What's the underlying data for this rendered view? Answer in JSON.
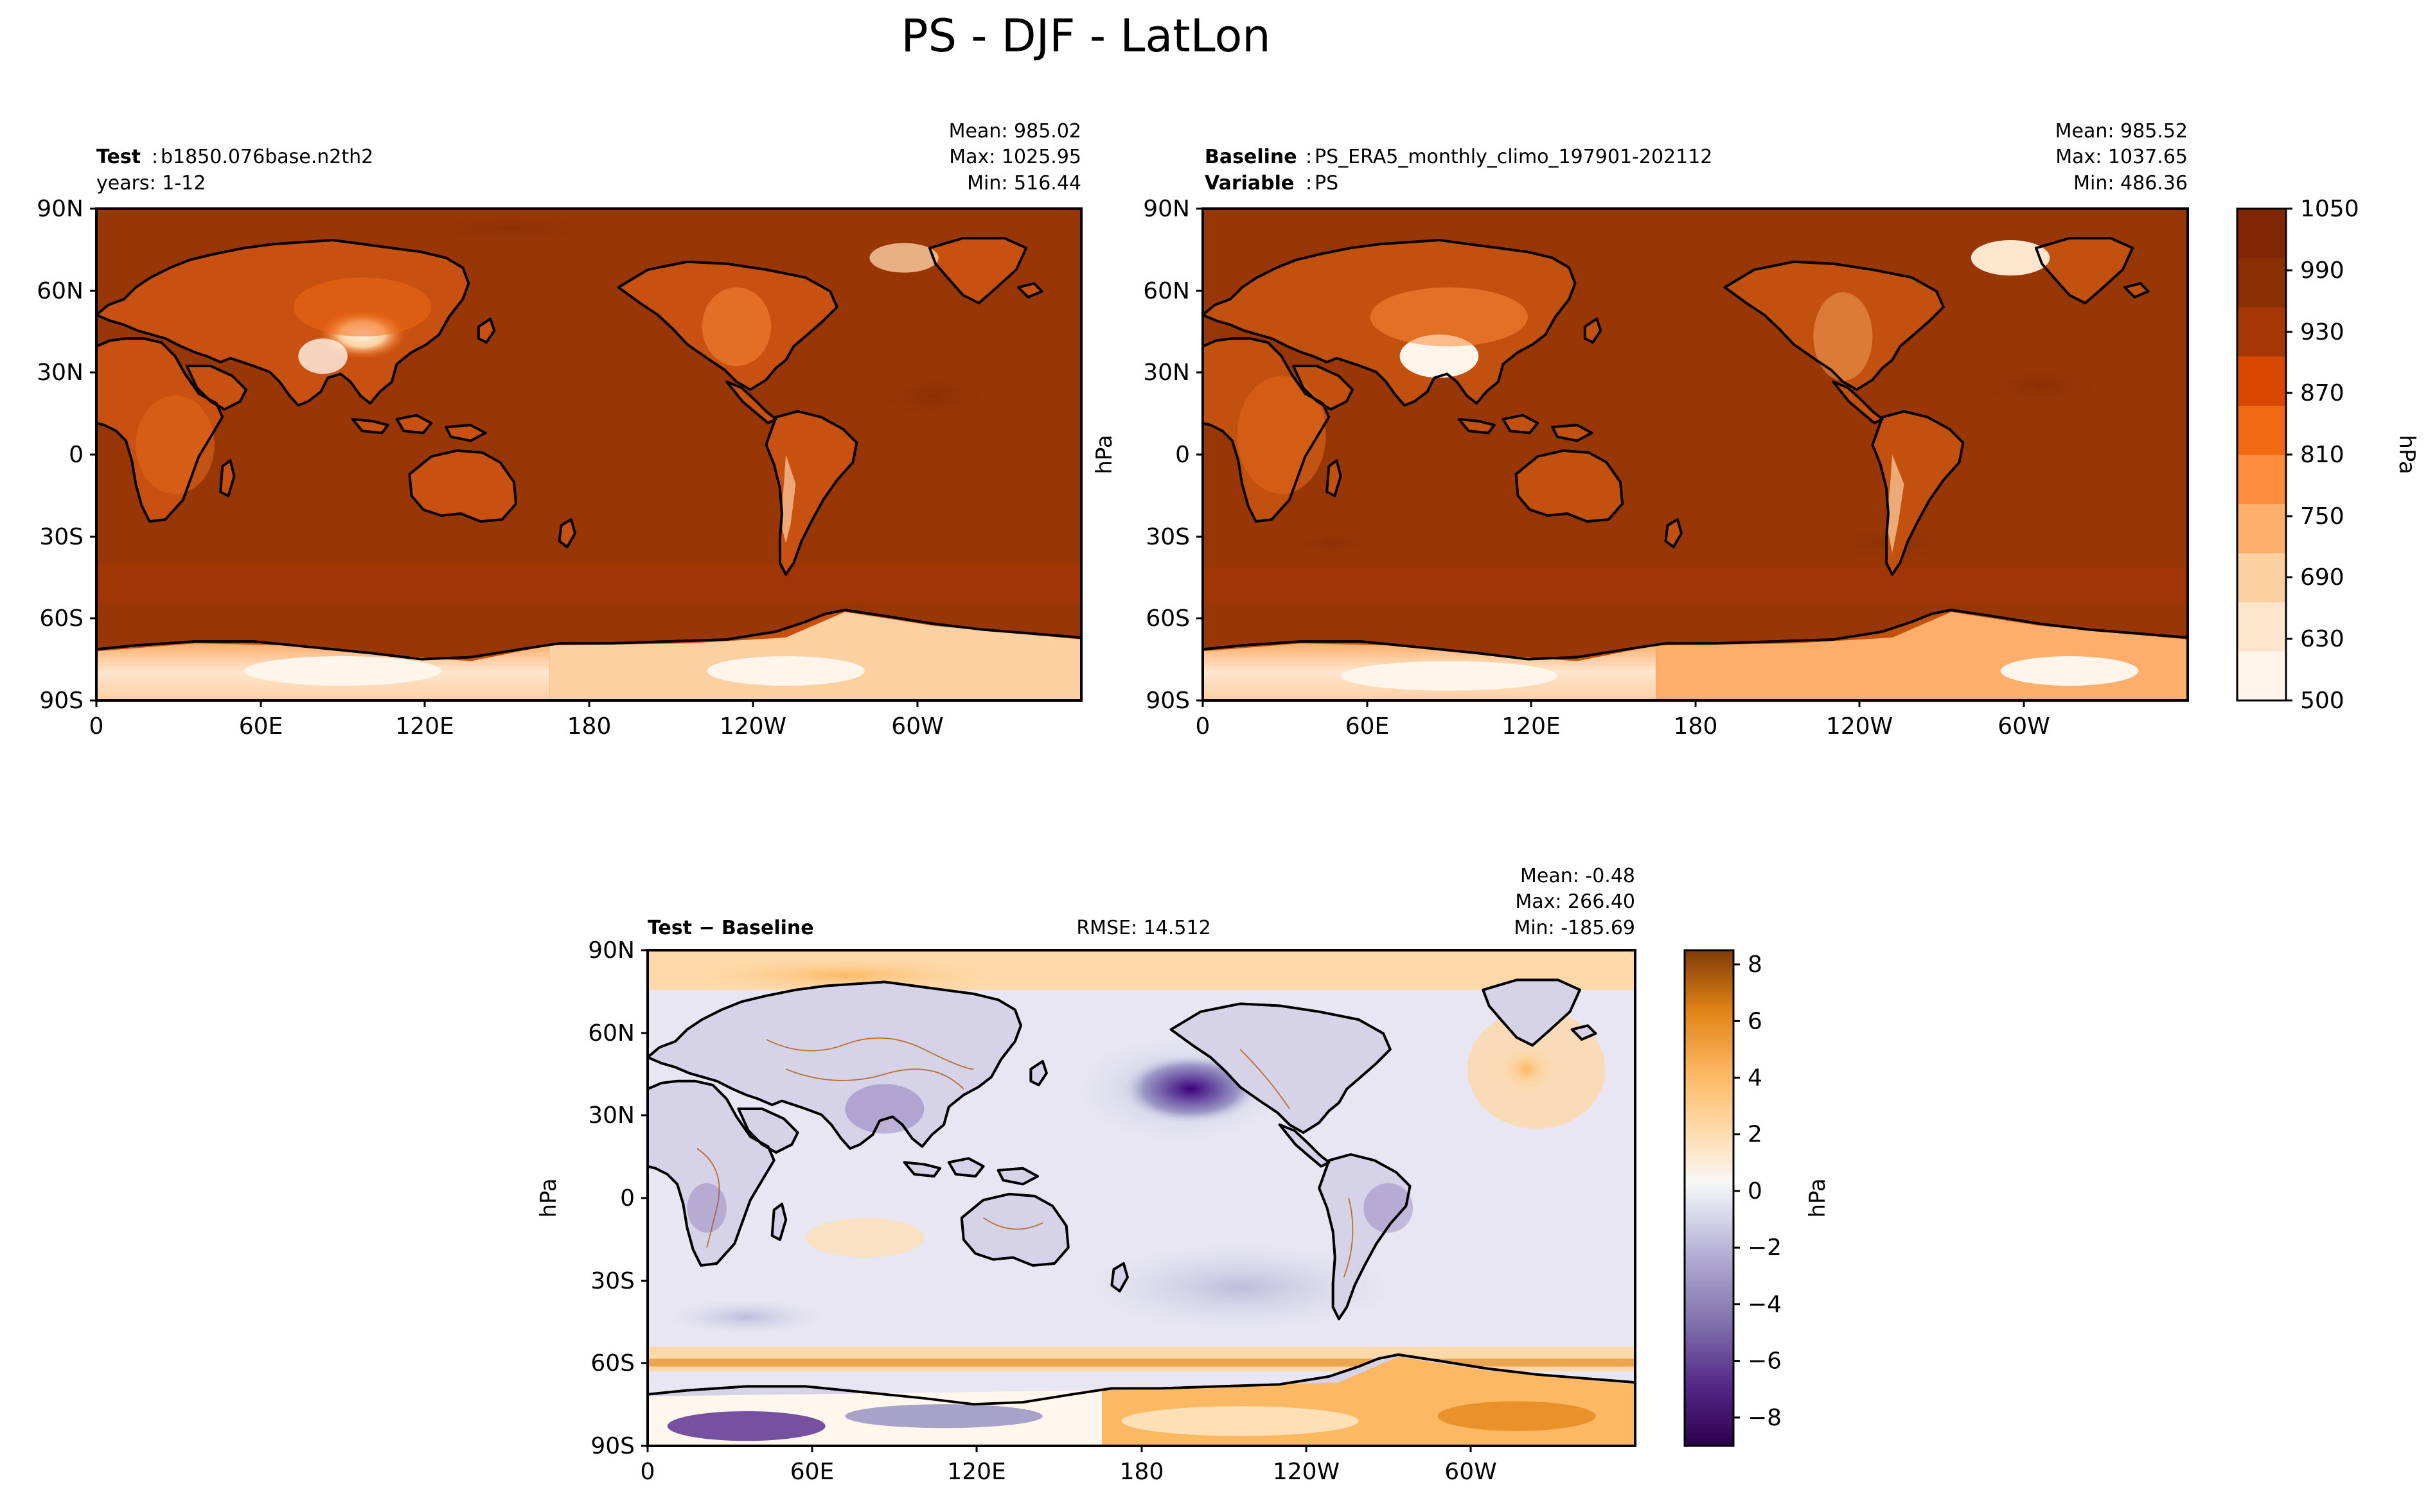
{
  "figure_title": "PS - DJF - LatLon",
  "colors": {
    "abs_scale": [
      "#fff5eb",
      "#fee6ce",
      "#fdd0a2",
      "#fdae6b",
      "#fd8d3c",
      "#f16913",
      "#d94801",
      "#a63603",
      "#8b2f04",
      "#7f2704"
    ],
    "diff_scale_neg": [
      "#3f007d",
      "#54278f",
      "#6a51a3",
      "#807dba",
      "#9e9ac8",
      "#bcbddc",
      "#dadaeb",
      "#efedf5",
      "#fcfbfd"
    ],
    "diff_scale_pos": [
      "#fff7ec",
      "#fee0b6",
      "#fdb863",
      "#e08214",
      "#b35806",
      "#7f3b08"
    ],
    "land_outline": "#000000",
    "ocean_absolute": "#983705"
  },
  "chart_data": [
    {
      "type": "heatmap",
      "panel": "test",
      "title_bold": "Test",
      "title_text": "b1850.076base.n2th2",
      "subtitle": "years: 1-12",
      "stats": [
        "Mean: 985.02",
        "Max: 1025.95",
        "Min: 516.44"
      ],
      "lat_ticks": [
        "90N",
        "60N",
        "30N",
        "0",
        "30S",
        "60S",
        "90S"
      ],
      "lon_ticks": [
        "0",
        "60E",
        "120E",
        "180",
        "120W",
        "60W"
      ],
      "xlim": [
        0,
        360
      ],
      "ylim": [
        -90,
        90
      ],
      "colormap": "Oranges",
      "vmin": 500,
      "vmax": 1050
    },
    {
      "type": "heatmap",
      "panel": "baseline",
      "title_bold": "Baseline",
      "title_text": "PS_ERA5_monthly_climo_197901-202112",
      "subtitle_bold": "Variable",
      "subtitle_text": "PS",
      "stats": [
        "Mean: 985.52",
        "Max: 1037.65",
        "Min: 486.36"
      ],
      "ylabel": "hPa",
      "lat_ticks": [
        "90N",
        "60N",
        "30N",
        "0",
        "30S",
        "60S",
        "90S"
      ],
      "lon_ticks": [
        "0",
        "60E",
        "120E",
        "180",
        "120W",
        "60W"
      ],
      "xlim": [
        0,
        360
      ],
      "ylim": [
        -90,
        90
      ],
      "colormap": "Oranges",
      "vmin": 500,
      "vmax": 1050,
      "colorbar": {
        "label": "hPa",
        "ticks": [
          "1050",
          "990",
          "930",
          "870",
          "810",
          "750",
          "690",
          "630",
          "500"
        ],
        "levels": 20
      }
    },
    {
      "type": "heatmap",
      "panel": "difference",
      "title_bold": "Test − Baseline",
      "center_text": "RMSE: 14.512",
      "stats": [
        "Mean: -0.48",
        "Max: 266.40",
        "Min: -185.69"
      ],
      "ylabel": "hPa",
      "lat_ticks": [
        "90N",
        "60N",
        "30N",
        "0",
        "30S",
        "60S",
        "90S"
      ],
      "lon_ticks": [
        "0",
        "60E",
        "120E",
        "180",
        "120W",
        "60W"
      ],
      "xlim": [
        0,
        360
      ],
      "ylim": [
        -90,
        90
      ],
      "colormap": "PuOr_r",
      "vmin": -9,
      "vmax": 8.5,
      "colorbar": {
        "label": "hPa",
        "ticks": [
          "8",
          "6",
          "4",
          "2",
          "0",
          "−2",
          "−4",
          "−6",
          "−8"
        ],
        "tick_values": [
          8,
          6,
          4,
          2,
          0,
          -2,
          -4,
          -6,
          -8
        ]
      }
    }
  ]
}
